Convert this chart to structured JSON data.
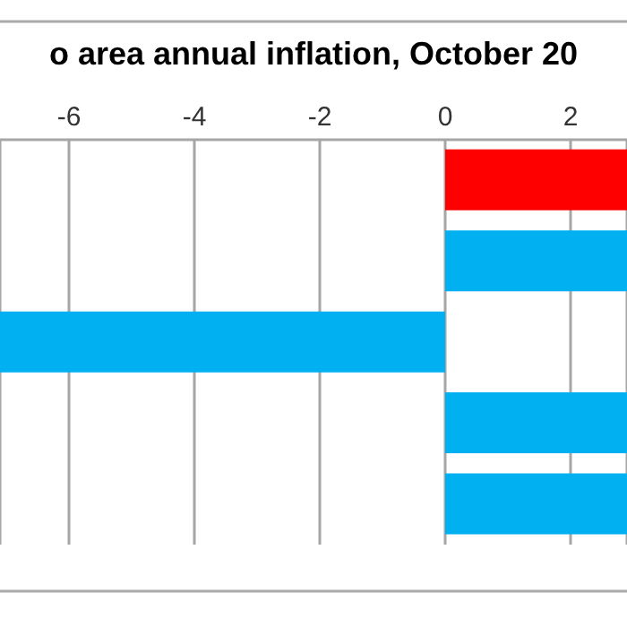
{
  "chart_data": {
    "type": "bar",
    "orientation": "horizontal",
    "title": "o area annual inflation, October 20",
    "categories": [
      null,
      null,
      null,
      null,
      null
    ],
    "values": [
      2.9,
      2.9,
      -7.1,
      2.9,
      2.9
    ],
    "colors": [
      "#ff0000",
      "#00b0f0",
      "#00b0f0",
      "#00b0f0",
      "#00b0f0"
    ],
    "xlim": [
      -7.1,
      2.9
    ],
    "xticks": [
      -6,
      -4,
      -2,
      0,
      2
    ],
    "grid": "x",
    "legend": false
  }
}
